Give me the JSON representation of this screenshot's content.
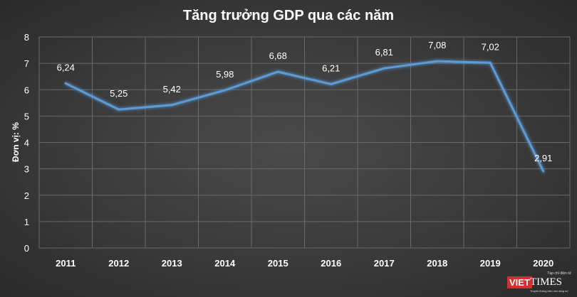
{
  "chart_data": {
    "type": "line",
    "title": "Tăng trưởng GDP qua các năm",
    "ylabel": "Đơn vị: %",
    "xlabel": "",
    "categories": [
      "2011",
      "2012",
      "2013",
      "2014",
      "2015",
      "2016",
      "2017",
      "2018",
      "2019",
      "2020"
    ],
    "series": [
      {
        "values": [
          6.24,
          5.25,
          5.42,
          5.98,
          6.68,
          6.21,
          6.81,
          7.08,
          7.02,
          2.91
        ]
      }
    ],
    "data_labels": [
      "6,24",
      "5,25",
      "5,42",
      "5,98",
      "6,68",
      "6,21",
      "6,81",
      "7,08",
      "7,02",
      "2,91"
    ],
    "ylim": [
      0,
      8
    ],
    "yticks": [
      0,
      1,
      2,
      3,
      4,
      5,
      6,
      7,
      8
    ],
    "grid": true,
    "line_color": "#5b9bd5"
  },
  "logo": {
    "tagline": "Tạp chí điện tử",
    "brand_red": "VIET",
    "brand_white": "TIMES",
    "subtitle": "Truyền thông trên nền tảng số"
  }
}
